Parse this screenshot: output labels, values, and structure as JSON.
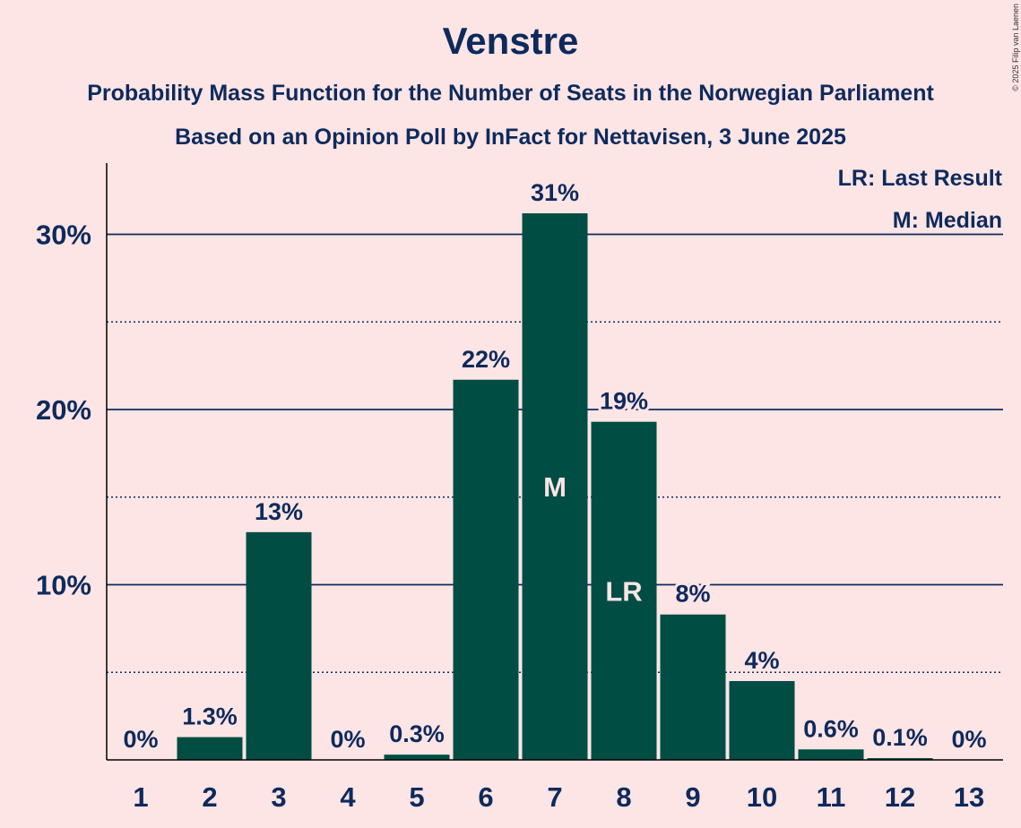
{
  "header": {
    "title": "Venstre",
    "subtitle1": "Probability Mass Function for the Number of Seats in the Norwegian Parliament",
    "subtitle2": "Based on an Opinion Poll by InFact for Nettavisen, 3 June 2025",
    "copyright": "© 2025 Filip van Laenen"
  },
  "legend": {
    "lr": "LR: Last Result",
    "m": "M: Median"
  },
  "colors": {
    "background": "#fde5e5",
    "bar": "#004d44",
    "text": "#0e2a5c"
  },
  "chart_data": {
    "type": "bar",
    "categories": [
      "1",
      "2",
      "3",
      "4",
      "5",
      "6",
      "7",
      "8",
      "9",
      "10",
      "11",
      "12",
      "13"
    ],
    "values": [
      0,
      1.3,
      13,
      0,
      0.3,
      21.7,
      31.2,
      19.3,
      8.3,
      4.5,
      0.6,
      0.1,
      0
    ],
    "data_labels": [
      "0%",
      "1.3%",
      "13%",
      "0%",
      "0.3%",
      "22%",
      "31%",
      "19%",
      "8%",
      "4%",
      "0.6%",
      "0.1%",
      "0%"
    ],
    "bar_markers": {
      "7": "M",
      "8": "LR"
    },
    "yticks": [
      10,
      20,
      30
    ],
    "ytick_labels": [
      "10%",
      "20%",
      "30%"
    ],
    "minor_gridlines": [
      5,
      15,
      25
    ],
    "ylim": [
      0,
      34
    ],
    "xlabel": "",
    "ylabel": "",
    "grid": true,
    "legend_position": "top-right"
  }
}
